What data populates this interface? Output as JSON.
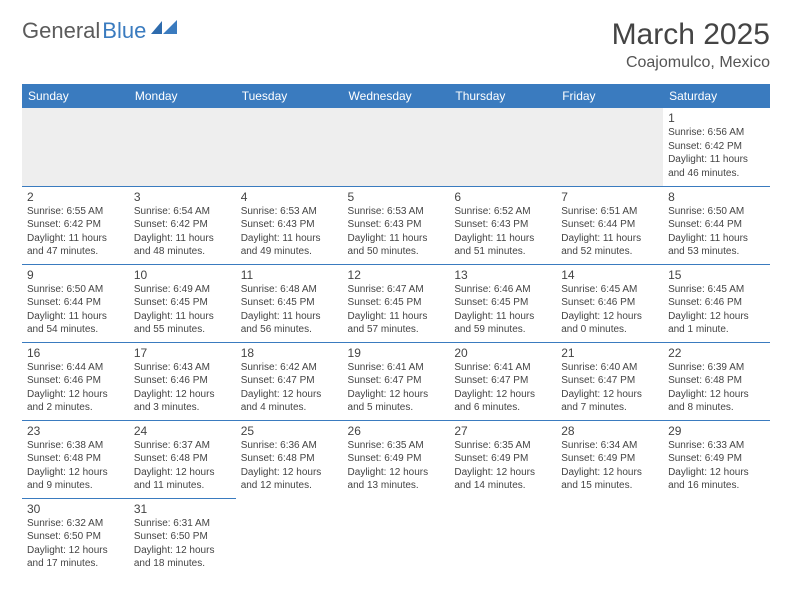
{
  "logo": {
    "general": "General",
    "blue": "Blue"
  },
  "title": {
    "month": "March 2025",
    "location": "Coajomulco, Mexico"
  },
  "colors": {
    "header_bg": "#3a7bbf",
    "header_fg": "#ffffff",
    "rule": "#3a7bbf",
    "empty_bg": "#eeeeee"
  },
  "day_headers": [
    "Sunday",
    "Monday",
    "Tuesday",
    "Wednesday",
    "Thursday",
    "Friday",
    "Saturday"
  ],
  "weeks": [
    [
      null,
      null,
      null,
      null,
      null,
      null,
      {
        "n": "1",
        "sr": "Sunrise: 6:56 AM",
        "ss": "Sunset: 6:42 PM",
        "dl": "Daylight: 11 hours and 46 minutes."
      }
    ],
    [
      {
        "n": "2",
        "sr": "Sunrise: 6:55 AM",
        "ss": "Sunset: 6:42 PM",
        "dl": "Daylight: 11 hours and 47 minutes."
      },
      {
        "n": "3",
        "sr": "Sunrise: 6:54 AM",
        "ss": "Sunset: 6:42 PM",
        "dl": "Daylight: 11 hours and 48 minutes."
      },
      {
        "n": "4",
        "sr": "Sunrise: 6:53 AM",
        "ss": "Sunset: 6:43 PM",
        "dl": "Daylight: 11 hours and 49 minutes."
      },
      {
        "n": "5",
        "sr": "Sunrise: 6:53 AM",
        "ss": "Sunset: 6:43 PM",
        "dl": "Daylight: 11 hours and 50 minutes."
      },
      {
        "n": "6",
        "sr": "Sunrise: 6:52 AM",
        "ss": "Sunset: 6:43 PM",
        "dl": "Daylight: 11 hours and 51 minutes."
      },
      {
        "n": "7",
        "sr": "Sunrise: 6:51 AM",
        "ss": "Sunset: 6:44 PM",
        "dl": "Daylight: 11 hours and 52 minutes."
      },
      {
        "n": "8",
        "sr": "Sunrise: 6:50 AM",
        "ss": "Sunset: 6:44 PM",
        "dl": "Daylight: 11 hours and 53 minutes."
      }
    ],
    [
      {
        "n": "9",
        "sr": "Sunrise: 6:50 AM",
        "ss": "Sunset: 6:44 PM",
        "dl": "Daylight: 11 hours and 54 minutes."
      },
      {
        "n": "10",
        "sr": "Sunrise: 6:49 AM",
        "ss": "Sunset: 6:45 PM",
        "dl": "Daylight: 11 hours and 55 minutes."
      },
      {
        "n": "11",
        "sr": "Sunrise: 6:48 AM",
        "ss": "Sunset: 6:45 PM",
        "dl": "Daylight: 11 hours and 56 minutes."
      },
      {
        "n": "12",
        "sr": "Sunrise: 6:47 AM",
        "ss": "Sunset: 6:45 PM",
        "dl": "Daylight: 11 hours and 57 minutes."
      },
      {
        "n": "13",
        "sr": "Sunrise: 6:46 AM",
        "ss": "Sunset: 6:45 PM",
        "dl": "Daylight: 11 hours and 59 minutes."
      },
      {
        "n": "14",
        "sr": "Sunrise: 6:45 AM",
        "ss": "Sunset: 6:46 PM",
        "dl": "Daylight: 12 hours and 0 minutes."
      },
      {
        "n": "15",
        "sr": "Sunrise: 6:45 AM",
        "ss": "Sunset: 6:46 PM",
        "dl": "Daylight: 12 hours and 1 minute."
      }
    ],
    [
      {
        "n": "16",
        "sr": "Sunrise: 6:44 AM",
        "ss": "Sunset: 6:46 PM",
        "dl": "Daylight: 12 hours and 2 minutes."
      },
      {
        "n": "17",
        "sr": "Sunrise: 6:43 AM",
        "ss": "Sunset: 6:46 PM",
        "dl": "Daylight: 12 hours and 3 minutes."
      },
      {
        "n": "18",
        "sr": "Sunrise: 6:42 AM",
        "ss": "Sunset: 6:47 PM",
        "dl": "Daylight: 12 hours and 4 minutes."
      },
      {
        "n": "19",
        "sr": "Sunrise: 6:41 AM",
        "ss": "Sunset: 6:47 PM",
        "dl": "Daylight: 12 hours and 5 minutes."
      },
      {
        "n": "20",
        "sr": "Sunrise: 6:41 AM",
        "ss": "Sunset: 6:47 PM",
        "dl": "Daylight: 12 hours and 6 minutes."
      },
      {
        "n": "21",
        "sr": "Sunrise: 6:40 AM",
        "ss": "Sunset: 6:47 PM",
        "dl": "Daylight: 12 hours and 7 minutes."
      },
      {
        "n": "22",
        "sr": "Sunrise: 6:39 AM",
        "ss": "Sunset: 6:48 PM",
        "dl": "Daylight: 12 hours and 8 minutes."
      }
    ],
    [
      {
        "n": "23",
        "sr": "Sunrise: 6:38 AM",
        "ss": "Sunset: 6:48 PM",
        "dl": "Daylight: 12 hours and 9 minutes."
      },
      {
        "n": "24",
        "sr": "Sunrise: 6:37 AM",
        "ss": "Sunset: 6:48 PM",
        "dl": "Daylight: 12 hours and 11 minutes."
      },
      {
        "n": "25",
        "sr": "Sunrise: 6:36 AM",
        "ss": "Sunset: 6:48 PM",
        "dl": "Daylight: 12 hours and 12 minutes."
      },
      {
        "n": "26",
        "sr": "Sunrise: 6:35 AM",
        "ss": "Sunset: 6:49 PM",
        "dl": "Daylight: 12 hours and 13 minutes."
      },
      {
        "n": "27",
        "sr": "Sunrise: 6:35 AM",
        "ss": "Sunset: 6:49 PM",
        "dl": "Daylight: 12 hours and 14 minutes."
      },
      {
        "n": "28",
        "sr": "Sunrise: 6:34 AM",
        "ss": "Sunset: 6:49 PM",
        "dl": "Daylight: 12 hours and 15 minutes."
      },
      {
        "n": "29",
        "sr": "Sunrise: 6:33 AM",
        "ss": "Sunset: 6:49 PM",
        "dl": "Daylight: 12 hours and 16 minutes."
      }
    ],
    [
      {
        "n": "30",
        "sr": "Sunrise: 6:32 AM",
        "ss": "Sunset: 6:50 PM",
        "dl": "Daylight: 12 hours and 17 minutes."
      },
      {
        "n": "31",
        "sr": "Sunrise: 6:31 AM",
        "ss": "Sunset: 6:50 PM",
        "dl": "Daylight: 12 hours and 18 minutes."
      },
      null,
      null,
      null,
      null,
      null
    ]
  ]
}
